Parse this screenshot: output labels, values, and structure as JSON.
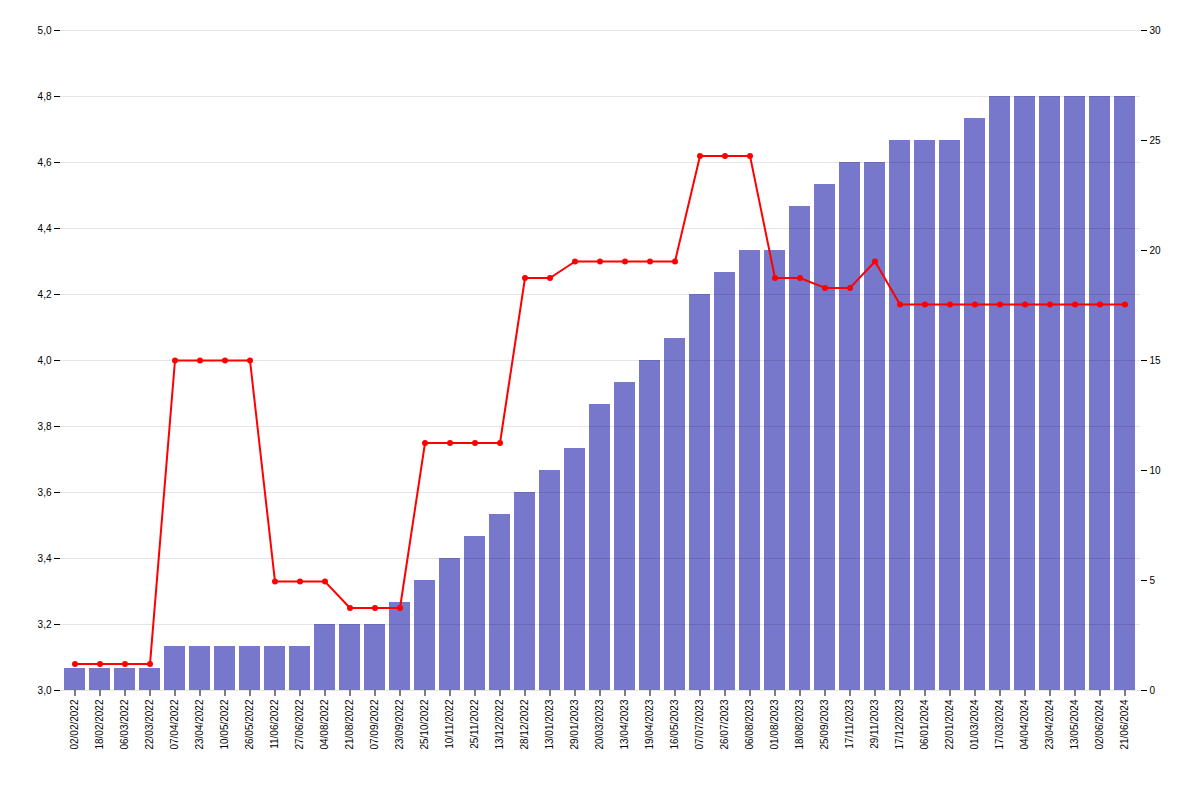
{
  "chart_data": {
    "type": "combo",
    "categories": [
      "02/02/2022",
      "18/02/2022",
      "06/03/2022",
      "22/03/2022",
      "07/04/2022",
      "23/04/2022",
      "10/05/2022",
      "26/05/2022",
      "11/06/2022",
      "27/06/2022",
      "04/08/2022",
      "21/08/2022",
      "07/09/2022",
      "23/09/2022",
      "25/10/2022",
      "10/11/2022",
      "25/11/2022",
      "13/12/2022",
      "28/12/2022",
      "13/01/2023",
      "29/01/2023",
      "20/03/2023",
      "13/04/2023",
      "19/04/2023",
      "16/05/2023",
      "07/07/2023",
      "26/07/2023",
      "06/08/2023",
      "01/08/2023",
      "18/08/2023",
      "25/09/2023",
      "17/11/2023",
      "29/11/2023",
      "17/12/2023",
      "06/01/2024",
      "22/01/2024",
      "01/03/2024",
      "17/03/2024",
      "04/04/2024",
      "23/04/2024",
      "13/05/2024",
      "02/06/2024",
      "21/06/2024"
    ],
    "series": [
      {
        "type": "bar",
        "color": "#7777cc",
        "axis": "y2",
        "values": [
          1,
          1,
          1,
          1,
          2,
          2,
          2,
          2,
          2,
          2,
          3,
          3,
          3,
          4,
          5,
          6,
          7,
          8,
          9,
          10,
          11,
          13,
          14,
          15,
          16,
          18,
          19,
          20,
          20,
          22,
          23,
          24,
          24,
          25,
          25,
          25,
          26,
          27,
          27,
          27,
          27,
          27,
          27
        ]
      },
      {
        "type": "line",
        "color": "#ff0000",
        "marker": "circle",
        "line_style": "solid",
        "values": [
          3.08,
          3.08,
          3.08,
          3.08,
          4.0,
          4.0,
          4.0,
          4.0,
          3.33,
          3.33,
          3.33,
          3.25,
          3.25,
          3.25,
          3.75,
          3.75,
          3.75,
          3.75,
          4.25,
          4.25,
          4.3,
          4.3,
          4.3,
          4.3,
          4.3,
          4.62,
          4.62,
          4.62,
          4.25,
          4.25,
          4.22,
          4.22,
          4.3,
          4.17,
          4.17,
          4.17,
          4.17,
          4.17,
          4.17,
          4.17,
          4.17,
          4.17,
          4.17
        ]
      }
    ],
    "ylim": [
      3.0,
      5.0
    ],
    "yticks": [
      {
        "value": 3.0,
        "label": "3,0"
      },
      {
        "value": 3.2,
        "label": "3,2"
      },
      {
        "value": 3.4,
        "label": "3,4"
      },
      {
        "value": 3.6,
        "label": "3,6"
      },
      {
        "value": 3.8,
        "label": "3,8"
      },
      {
        "value": 4.0,
        "label": "4,0"
      },
      {
        "value": 4.2,
        "label": "4,2"
      },
      {
        "value": 4.4,
        "label": "4,4"
      },
      {
        "value": 4.6,
        "label": "4,6"
      },
      {
        "value": 4.8,
        "label": "4,8"
      },
      {
        "value": 5.0,
        "label": "5,0"
      }
    ],
    "y2lim": [
      0,
      30
    ],
    "y2ticks": [
      0,
      5,
      10,
      15,
      20,
      25,
      30
    ],
    "grid": true
  }
}
